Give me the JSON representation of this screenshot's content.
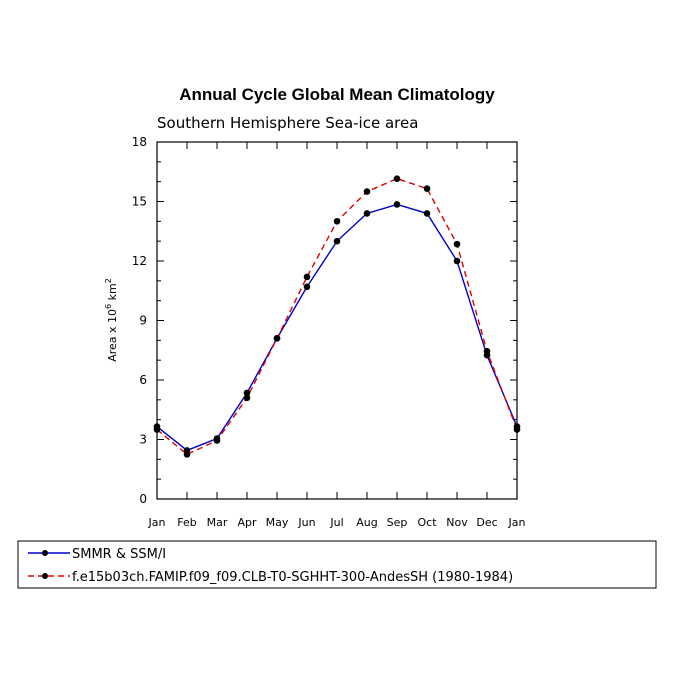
{
  "chart_data": {
    "type": "line",
    "title": "Annual Cycle Global Mean Climatology",
    "subtitle": "Southern Hemisphere Sea-ice area",
    "ylabel_prefix": "Area x 10",
    "ylabel_exp1": "6",
    "ylabel_mid": " km",
    "ylabel_exp2": "2",
    "xlabel": "",
    "ylim": [
      0,
      18
    ],
    "yticks": [
      0,
      3,
      6,
      9,
      12,
      15,
      18
    ],
    "categories": [
      "Jan",
      "Feb",
      "Mar",
      "Apr",
      "May",
      "Jun",
      "Jul",
      "Aug",
      "Sep",
      "Oct",
      "Nov",
      "Dec",
      "Jan"
    ],
    "series": [
      {
        "name": "SMMR & SSM/I",
        "color": "#0000cc",
        "dash": "solid",
        "values": [
          3.65,
          2.45,
          3.05,
          5.35,
          8.1,
          10.7,
          13.0,
          14.4,
          14.85,
          14.4,
          12.0,
          7.25,
          3.65
        ]
      },
      {
        "name": "f.e15b03ch.FAMIP.f09_f09.CLB-T0-SGHHT-300-AndesSH (1980-1984)",
        "color": "#dd0000",
        "dash": "dashed",
        "values": [
          3.5,
          2.25,
          2.95,
          5.1,
          8.1,
          11.2,
          14.0,
          15.5,
          16.15,
          15.65,
          12.85,
          7.45,
          3.5
        ]
      }
    ],
    "legend_position": "bottom-left"
  }
}
